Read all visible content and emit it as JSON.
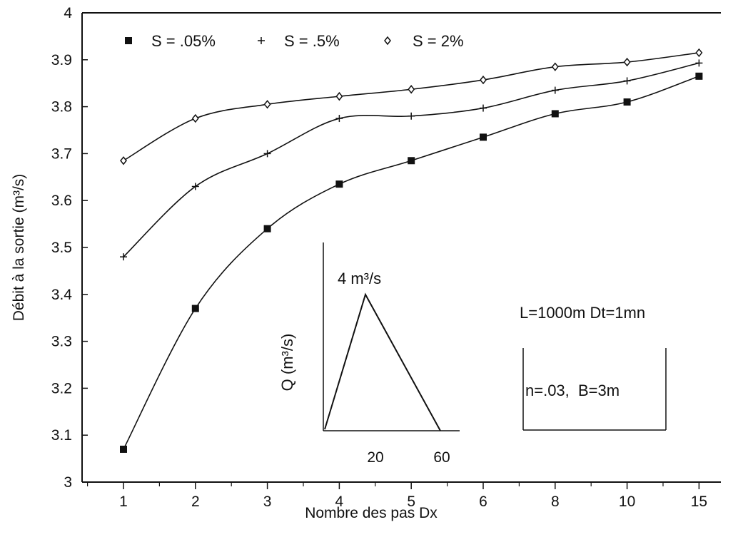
{
  "chart_data": {
    "type": "line",
    "xlabel": "Nombre des pas Dx",
    "ylabel": "Débit à la sortie (m³/s)",
    "x_categories": [
      "1",
      "2",
      "3",
      "4",
      "5",
      "6",
      "8",
      "10",
      "15"
    ],
    "ylim": [
      3,
      4
    ],
    "y_ticks": [
      "3",
      "3.1",
      "3.2",
      "3.3",
      "3.4",
      "3.5",
      "3.6",
      "3.7",
      "3.8",
      "3.9",
      "4"
    ],
    "grid": false,
    "legend_position": "top-left",
    "series": [
      {
        "name": "S = .05%",
        "marker": "square",
        "values": [
          3.07,
          3.37,
          3.54,
          3.635,
          3.685,
          3.735,
          3.785,
          3.81,
          3.865
        ]
      },
      {
        "name": "S = .5%",
        "marker": "plus",
        "values": [
          3.48,
          3.63,
          3.7,
          3.775,
          3.78,
          3.797,
          3.835,
          3.855,
          3.893
        ]
      },
      {
        "name": "S = 2%",
        "marker": "diamond",
        "values": [
          3.685,
          3.775,
          3.805,
          3.822,
          3.837,
          3.857,
          3.885,
          3.895,
          3.915
        ]
      }
    ],
    "inset": {
      "ylabel": "Q (m³/s)",
      "peak_label": "4 m³/s",
      "x_ticks": [
        "20",
        "60"
      ]
    },
    "annotations": {
      "params_line1": "L=1000m Dt=1mn",
      "params_line2": "n=.03,  B=3m"
    }
  },
  "colors": {
    "ink": "#111111",
    "background": "#ffffff"
  }
}
